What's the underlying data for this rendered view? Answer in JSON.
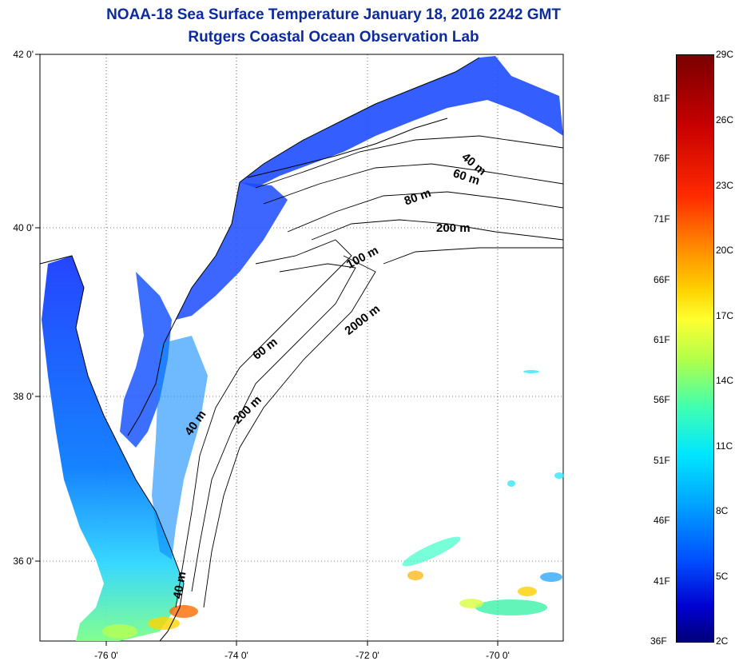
{
  "title": {
    "line1": "NOAA-18 Sea Surface Temperature January 18, 2016 2242 GMT",
    "line2": "Rutgers Coastal Ocean Observation Lab"
  },
  "axes": {
    "lat_labels": [
      "42 0'",
      "40 0'",
      "38 0'",
      "36 0'"
    ],
    "lon_labels": [
      "-76 0'",
      "-74 0'",
      "-72 0'",
      "-70 0'"
    ]
  },
  "contours": {
    "c40_top": "40 m",
    "c60_top": "60 m",
    "c80": "80 m",
    "c200_top": "200 m",
    "c100": "100 m",
    "c2000": "2000 m",
    "c60_mid": "60 m",
    "c200_mid": "200 m",
    "c40_mid": "40 m",
    "c40_bot": "40 m"
  },
  "colorbar": {
    "celsius": [
      "29C",
      "26C",
      "23C",
      "20C",
      "17C",
      "14C",
      "11C",
      "8C",
      "5C",
      "2C"
    ],
    "fahrenheit": [
      "81F",
      "76F",
      "71F",
      "66F",
      "61F",
      "56F",
      "51F",
      "46F",
      "41F",
      "36F"
    ],
    "colors": [
      "#7a0000",
      "#ff2a00",
      "#ffd200",
      "#40ffb0",
      "#00a8ff",
      "#0000d0"
    ]
  }
}
